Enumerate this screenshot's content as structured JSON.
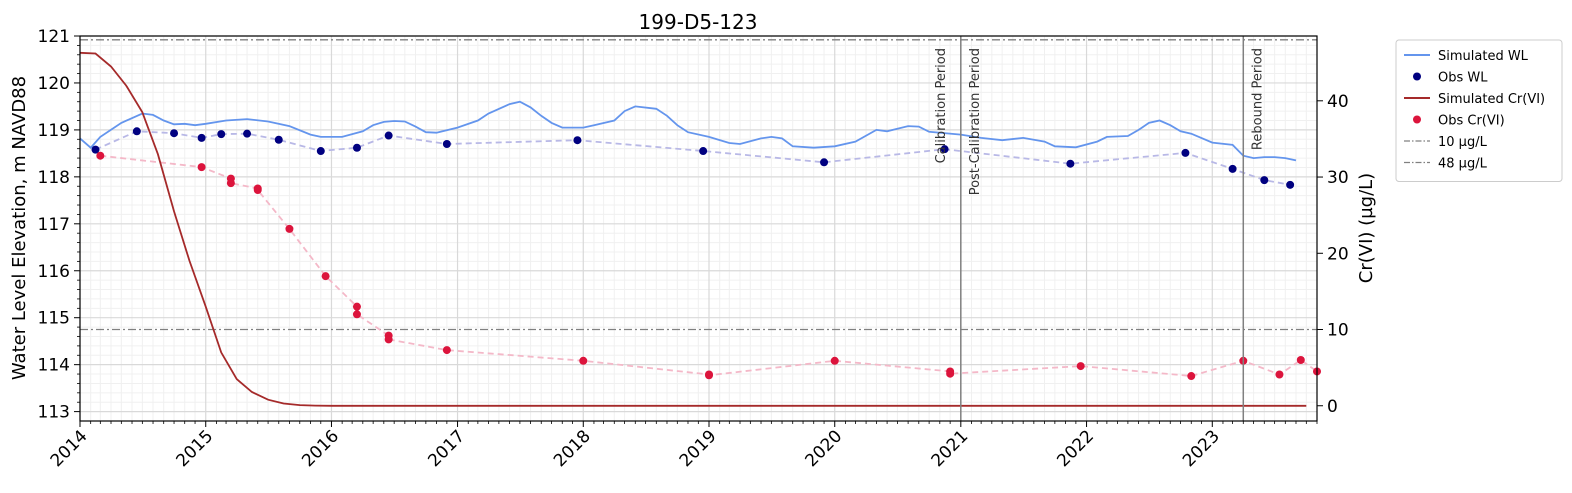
{
  "chart_data": {
    "type": "line",
    "title": "199-D5-123",
    "ylabel": "Water Level Elevation, m NAVD88",
    "y2label": "Cr(VI) (µg/L)",
    "xlim": [
      "2014-01-01",
      "2023-11-01"
    ],
    "ylim": [
      112.8,
      121.0
    ],
    "y2lim": [
      -2.0,
      48.5
    ],
    "xticks": [
      "2014",
      "2015",
      "2016",
      "2017",
      "2018",
      "2019",
      "2020",
      "2021",
      "2022",
      "2023"
    ],
    "yticks": [
      113,
      114,
      115,
      116,
      117,
      118,
      119,
      120,
      121
    ],
    "y2ticks": [
      0,
      10,
      20,
      30,
      40
    ],
    "grid": true,
    "legend_position": "outside-right",
    "colors": {
      "sim_wl": "#6495ed",
      "obs_wl": "#000080",
      "obs_wl_line": "#b8b8e6",
      "sim_cr": "#a52a2a",
      "obs_cr": "#dc143c",
      "obs_cr_line": "#f4b8c8",
      "threshold": "#808080",
      "period_line": "#808080"
    },
    "legend": [
      {
        "label": "Simulated WL",
        "kind": "line",
        "color": "#6495ed"
      },
      {
        "label": "Obs WL",
        "kind": "dot",
        "color": "#000080"
      },
      {
        "label": "Simulated Cr(VI)",
        "kind": "line",
        "color": "#a52a2a"
      },
      {
        "label": "Obs Cr(VI)",
        "kind": "dot",
        "color": "#dc143c"
      },
      {
        "label": "10 µg/L",
        "kind": "dashdot",
        "color": "#808080"
      },
      {
        "label": "48 µg/L",
        "kind": "dashdot",
        "color": "#808080"
      }
    ],
    "thresholds_right_axis": [
      10,
      48
    ],
    "periods": [
      {
        "label": "Calibration Period",
        "date": "2021-01-01",
        "side": "left"
      },
      {
        "label": "Post-Calibration Period",
        "date": "2021-01-01",
        "side": "right"
      },
      {
        "label": "Rebound Period",
        "date": "2023-04-01",
        "side": "right"
      }
    ],
    "series": [
      {
        "name": "Simulated WL",
        "axis": "left",
        "style": "line",
        "points": [
          [
            "2014-01-01",
            118.82
          ],
          [
            "2014-02-01",
            118.62
          ],
          [
            "2014-03-01",
            118.85
          ],
          [
            "2014-05-01",
            119.15
          ],
          [
            "2014-07-01",
            119.35
          ],
          [
            "2014-08-01",
            119.32
          ],
          [
            "2014-09-01",
            119.2
          ],
          [
            "2014-10-01",
            119.12
          ],
          [
            "2014-11-01",
            119.13
          ],
          [
            "2014-12-01",
            119.1
          ],
          [
            "2015-01-01",
            119.13
          ],
          [
            "2015-03-01",
            119.2
          ],
          [
            "2015-05-01",
            119.23
          ],
          [
            "2015-07-01",
            119.18
          ],
          [
            "2015-09-01",
            119.08
          ],
          [
            "2015-11-01",
            118.9
          ],
          [
            "2015-12-01",
            118.85
          ],
          [
            "2016-02-01",
            118.85
          ],
          [
            "2016-04-01",
            118.97
          ],
          [
            "2016-05-01",
            119.1
          ],
          [
            "2016-06-01",
            119.17
          ],
          [
            "2016-07-01",
            119.19
          ],
          [
            "2016-08-01",
            119.18
          ],
          [
            "2016-09-01",
            119.07
          ],
          [
            "2016-10-01",
            118.95
          ],
          [
            "2016-11-01",
            118.94
          ],
          [
            "2017-01-01",
            119.05
          ],
          [
            "2017-03-01",
            119.2
          ],
          [
            "2017-04-01",
            119.35
          ],
          [
            "2017-06-01",
            119.55
          ],
          [
            "2017-07-01",
            119.6
          ],
          [
            "2017-08-01",
            119.48
          ],
          [
            "2017-09-01",
            119.3
          ],
          [
            "2017-10-01",
            119.15
          ],
          [
            "2017-11-01",
            119.05
          ],
          [
            "2018-01-01",
            119.05
          ],
          [
            "2018-02-01",
            119.1
          ],
          [
            "2018-04-01",
            119.2
          ],
          [
            "2018-05-01",
            119.4
          ],
          [
            "2018-06-01",
            119.5
          ],
          [
            "2018-08-01",
            119.45
          ],
          [
            "2018-09-01",
            119.3
          ],
          [
            "2018-10-01",
            119.1
          ],
          [
            "2018-11-01",
            118.95
          ],
          [
            "2019-01-01",
            118.85
          ],
          [
            "2019-03-01",
            118.72
          ],
          [
            "2019-04-01",
            118.7
          ],
          [
            "2019-06-01",
            118.82
          ],
          [
            "2019-07-01",
            118.85
          ],
          [
            "2019-08-01",
            118.82
          ],
          [
            "2019-09-01",
            118.65
          ],
          [
            "2019-11-01",
            118.62
          ],
          [
            "2020-01-01",
            118.65
          ],
          [
            "2020-03-01",
            118.75
          ],
          [
            "2020-05-01",
            119.0
          ],
          [
            "2020-06-01",
            118.97
          ],
          [
            "2020-08-01",
            119.08
          ],
          [
            "2020-09-01",
            119.07
          ],
          [
            "2020-10-01",
            118.96
          ],
          [
            "2021-01-01",
            118.9
          ],
          [
            "2021-03-01",
            118.83
          ],
          [
            "2021-05-01",
            118.78
          ],
          [
            "2021-07-01",
            118.83
          ],
          [
            "2021-09-01",
            118.75
          ],
          [
            "2021-10-01",
            118.65
          ],
          [
            "2021-12-01",
            118.63
          ],
          [
            "2022-02-01",
            118.75
          ],
          [
            "2022-03-01",
            118.85
          ],
          [
            "2022-05-01",
            118.87
          ],
          [
            "2022-06-01",
            119.0
          ],
          [
            "2022-07-01",
            119.15
          ],
          [
            "2022-08-01",
            119.2
          ],
          [
            "2022-09-01",
            119.1
          ],
          [
            "2022-10-01",
            118.97
          ],
          [
            "2022-11-01",
            118.92
          ],
          [
            "2023-01-01",
            118.73
          ],
          [
            "2023-03-01",
            118.68
          ],
          [
            "2023-04-01",
            118.45
          ],
          [
            "2023-05-01",
            118.4
          ],
          [
            "2023-06-01",
            118.42
          ],
          [
            "2023-07-01",
            118.42
          ],
          [
            "2023-08-01",
            118.4
          ],
          [
            "2023-09-01",
            118.35
          ]
        ]
      },
      {
        "name": "Obs WL",
        "axis": "left",
        "style": "dots-dashed",
        "points": [
          [
            "2014-02-15",
            118.58
          ],
          [
            "2014-06-15",
            118.97
          ],
          [
            "2014-10-01",
            118.93
          ],
          [
            "2014-12-20",
            118.83
          ],
          [
            "2015-02-15",
            118.91
          ],
          [
            "2015-05-01",
            118.92
          ],
          [
            "2015-08-01",
            118.79
          ],
          [
            "2015-12-01",
            118.55
          ],
          [
            "2016-03-15",
            118.62
          ],
          [
            "2016-06-15",
            118.88
          ],
          [
            "2016-12-01",
            118.7
          ],
          [
            "2017-12-15",
            118.78
          ],
          [
            "2018-12-15",
            118.55
          ],
          [
            "2019-12-01",
            118.31
          ],
          [
            "2020-11-15",
            118.59
          ],
          [
            "2021-11-15",
            118.28
          ],
          [
            "2022-10-15",
            118.51
          ],
          [
            "2023-03-01",
            118.17
          ],
          [
            "2023-06-01",
            117.93
          ],
          [
            "2023-08-15",
            117.83
          ]
        ]
      },
      {
        "name": "Simulated Cr(VI)",
        "axis": "right",
        "style": "line",
        "points": [
          [
            "2014-01-01",
            46.3
          ],
          [
            "2014-02-15",
            46.2
          ],
          [
            "2014-04-01",
            44.5
          ],
          [
            "2014-05-15",
            42
          ],
          [
            "2014-07-01",
            38.5
          ],
          [
            "2014-08-15",
            33
          ],
          [
            "2014-10-01",
            25.5
          ],
          [
            "2014-11-15",
            19
          ],
          [
            "2015-01-01",
            13
          ],
          [
            "2015-02-15",
            7
          ],
          [
            "2015-04-01",
            3.5
          ],
          [
            "2015-05-15",
            1.8
          ],
          [
            "2015-07-01",
            0.8
          ],
          [
            "2015-08-15",
            0.3
          ],
          [
            "2015-10-01",
            0.08
          ],
          [
            "2015-11-15",
            0.02
          ],
          [
            "2016-01-01",
            0
          ],
          [
            "2017-01-01",
            0
          ],
          [
            "2019-01-01",
            0
          ],
          [
            "2021-01-01",
            0
          ],
          [
            "2023-01-01",
            0
          ],
          [
            "2023-10-01",
            0
          ]
        ]
      },
      {
        "name": "Obs Cr(VI)",
        "axis": "right",
        "style": "dots-dashed",
        "points": [
          [
            "2014-03-01",
            32.8
          ],
          [
            "2014-12-20",
            31.3
          ],
          [
            "2015-03-15",
            29.8
          ],
          [
            "2015-03-15",
            29.2
          ],
          [
            "2015-06-01",
            28.5
          ],
          [
            "2015-06-01",
            28.3
          ],
          [
            "2015-09-01",
            23.2
          ],
          [
            "2015-12-15",
            17
          ],
          [
            "2016-03-15",
            13
          ],
          [
            "2016-03-15",
            12
          ],
          [
            "2016-06-15",
            9.2
          ],
          [
            "2016-06-15",
            8.7
          ],
          [
            "2016-12-01",
            7.3
          ],
          [
            "2018-01-01",
            5.9
          ],
          [
            "2019-01-01",
            4.1
          ],
          [
            "2019-01-01",
            4.0
          ],
          [
            "2020-01-01",
            5.9
          ],
          [
            "2020-12-01",
            4.5
          ],
          [
            "2020-12-01",
            4.2
          ],
          [
            "2021-12-15",
            5.2
          ],
          [
            "2022-11-01",
            3.9
          ],
          [
            "2023-04-01",
            5.9
          ],
          [
            "2023-07-15",
            4.1
          ],
          [
            "2023-09-15",
            6.0
          ],
          [
            "2023-11-01",
            4.5
          ]
        ]
      }
    ]
  }
}
